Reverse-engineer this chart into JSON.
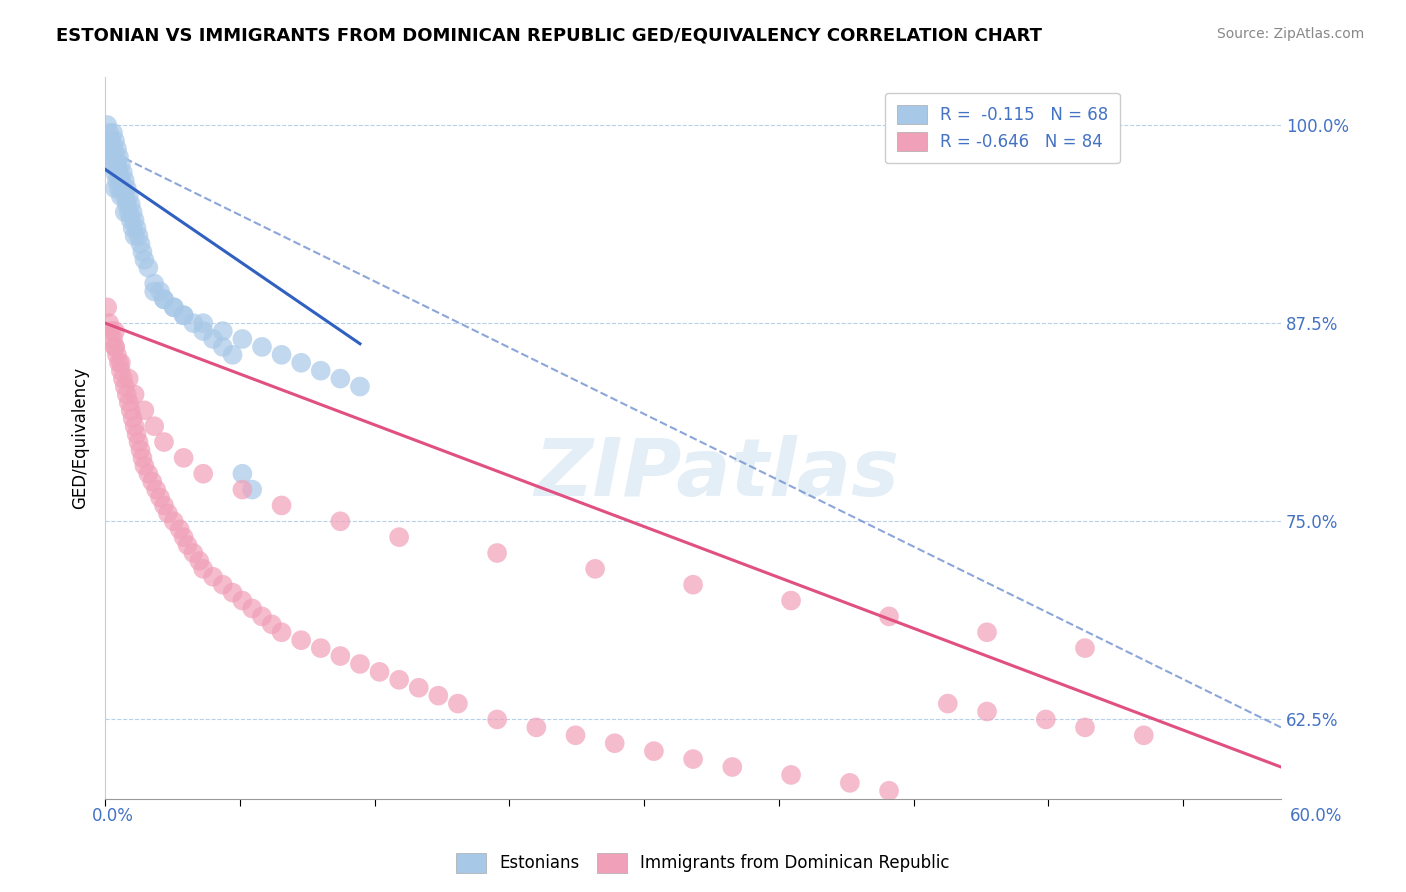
{
  "title": "ESTONIAN VS IMMIGRANTS FROM DOMINICAN REPUBLIC GED/EQUIVALENCY CORRELATION CHART",
  "source": "Source: ZipAtlas.com",
  "ylabel": "GED/Equivalency",
  "ytick_labels": [
    "100.0%",
    "87.5%",
    "75.0%",
    "62.5%"
  ],
  "ytick_values": [
    1.0,
    0.875,
    0.75,
    0.625
  ],
  "xmin": 0.0,
  "xmax": 0.6,
  "ymin": 0.575,
  "ymax": 1.03,
  "legend_r1": "R =  -0.115   N = 68",
  "legend_r2": "R = -0.646   N = 84",
  "color_blue": "#a8c8e8",
  "color_pink": "#f0a0b8",
  "line_blue_solid": "#3060c0",
  "line_blue_dash": "#7090d0",
  "line_pink": "#e05080",
  "watermark": "ZIPatlas",
  "blue_scatter_x": [
    0.001,
    0.002,
    0.002,
    0.003,
    0.003,
    0.003,
    0.004,
    0.004,
    0.004,
    0.005,
    0.005,
    0.005,
    0.005,
    0.006,
    0.006,
    0.006,
    0.007,
    0.007,
    0.007,
    0.008,
    0.008,
    0.008,
    0.009,
    0.009,
    0.01,
    0.01,
    0.01,
    0.011,
    0.011,
    0.012,
    0.012,
    0.013,
    0.013,
    0.014,
    0.014,
    0.015,
    0.015,
    0.016,
    0.017,
    0.018,
    0.019,
    0.02,
    0.022,
    0.025,
    0.028,
    0.03,
    0.035,
    0.04,
    0.05,
    0.06,
    0.07,
    0.08,
    0.09,
    0.1,
    0.11,
    0.12,
    0.13,
    0.025,
    0.03,
    0.035,
    0.04,
    0.045,
    0.05,
    0.055,
    0.06,
    0.065,
    0.07,
    0.075
  ],
  "blue_scatter_y": [
    1.0,
    0.995,
    0.985,
    0.99,
    0.98,
    0.975,
    0.995,
    0.985,
    0.975,
    0.99,
    0.98,
    0.97,
    0.96,
    0.985,
    0.975,
    0.965,
    0.98,
    0.97,
    0.96,
    0.975,
    0.965,
    0.955,
    0.97,
    0.96,
    0.965,
    0.955,
    0.945,
    0.96,
    0.95,
    0.955,
    0.945,
    0.95,
    0.94,
    0.945,
    0.935,
    0.94,
    0.93,
    0.935,
    0.93,
    0.925,
    0.92,
    0.915,
    0.91,
    0.9,
    0.895,
    0.89,
    0.885,
    0.88,
    0.875,
    0.87,
    0.865,
    0.86,
    0.855,
    0.85,
    0.845,
    0.84,
    0.835,
    0.895,
    0.89,
    0.885,
    0.88,
    0.875,
    0.87,
    0.865,
    0.86,
    0.855,
    0.78,
    0.77
  ],
  "pink_scatter_x": [
    0.001,
    0.002,
    0.003,
    0.004,
    0.005,
    0.005,
    0.006,
    0.007,
    0.008,
    0.009,
    0.01,
    0.011,
    0.012,
    0.013,
    0.014,
    0.015,
    0.016,
    0.017,
    0.018,
    0.019,
    0.02,
    0.022,
    0.024,
    0.026,
    0.028,
    0.03,
    0.032,
    0.035,
    0.038,
    0.04,
    0.042,
    0.045,
    0.048,
    0.05,
    0.055,
    0.06,
    0.065,
    0.07,
    0.075,
    0.08,
    0.085,
    0.09,
    0.1,
    0.11,
    0.12,
    0.13,
    0.14,
    0.15,
    0.16,
    0.17,
    0.18,
    0.2,
    0.22,
    0.24,
    0.26,
    0.28,
    0.3,
    0.32,
    0.35,
    0.38,
    0.4,
    0.43,
    0.45,
    0.48,
    0.5,
    0.53,
    0.005,
    0.008,
    0.012,
    0.015,
    0.02,
    0.025,
    0.03,
    0.04,
    0.05,
    0.07,
    0.09,
    0.12,
    0.15,
    0.2,
    0.25,
    0.3,
    0.35,
    0.4,
    0.45,
    0.5
  ],
  "pink_scatter_y": [
    0.885,
    0.875,
    0.87,
    0.865,
    0.86,
    0.87,
    0.855,
    0.85,
    0.845,
    0.84,
    0.835,
    0.83,
    0.825,
    0.82,
    0.815,
    0.81,
    0.805,
    0.8,
    0.795,
    0.79,
    0.785,
    0.78,
    0.775,
    0.77,
    0.765,
    0.76,
    0.755,
    0.75,
    0.745,
    0.74,
    0.735,
    0.73,
    0.725,
    0.72,
    0.715,
    0.71,
    0.705,
    0.7,
    0.695,
    0.69,
    0.685,
    0.68,
    0.675,
    0.67,
    0.665,
    0.66,
    0.655,
    0.65,
    0.645,
    0.64,
    0.635,
    0.625,
    0.62,
    0.615,
    0.61,
    0.605,
    0.6,
    0.595,
    0.59,
    0.585,
    0.58,
    0.635,
    0.63,
    0.625,
    0.62,
    0.615,
    0.86,
    0.85,
    0.84,
    0.83,
    0.82,
    0.81,
    0.8,
    0.79,
    0.78,
    0.77,
    0.76,
    0.75,
    0.74,
    0.73,
    0.72,
    0.71,
    0.7,
    0.69,
    0.68,
    0.67
  ],
  "blue_solid_xrange": [
    0.0,
    0.13
  ],
  "blue_solid_yrange": [
    0.972,
    0.862
  ],
  "blue_dash_xrange": [
    0.0,
    0.6
  ],
  "blue_dash_yrange": [
    0.985,
    0.62
  ],
  "pink_solid_xrange": [
    0.0,
    0.6
  ],
  "pink_solid_yrange": [
    0.875,
    0.595
  ]
}
